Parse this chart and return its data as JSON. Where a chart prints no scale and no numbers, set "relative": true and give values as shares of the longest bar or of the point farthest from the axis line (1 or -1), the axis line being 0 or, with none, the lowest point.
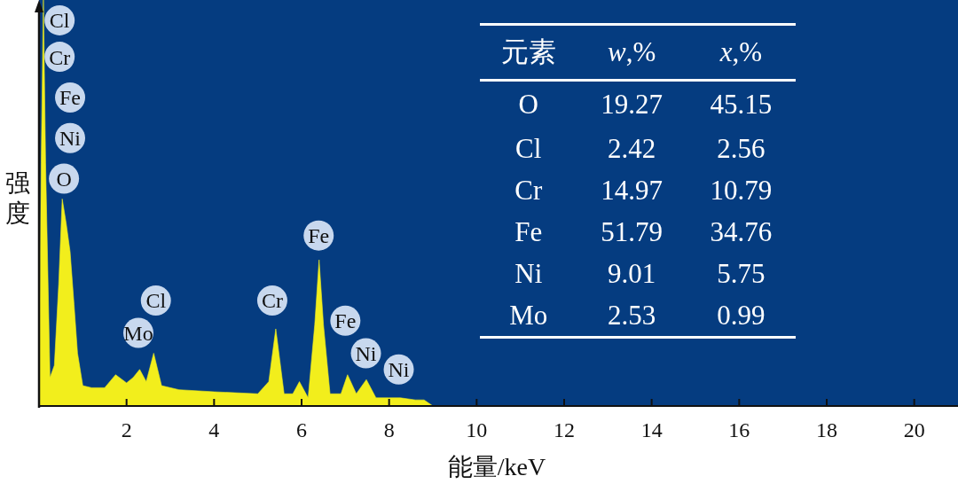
{
  "chart_data": [
    {
      "type": "area",
      "xlabel": "能量/keV",
      "ylabel": "强度",
      "relative": true,
      "x": [
        0,
        0.05,
        0.1,
        0.15,
        0.25,
        0.35,
        0.45,
        0.53,
        0.62,
        0.71,
        0.8,
        0.88,
        1.0,
        1.2,
        1.5,
        1.75,
        2.0,
        2.15,
        2.3,
        2.45,
        2.62,
        2.8,
        3.2,
        4.0,
        5.0,
        5.25,
        5.41,
        5.6,
        5.8,
        5.95,
        6.15,
        6.3,
        6.4,
        6.5,
        6.65,
        6.9,
        7.05,
        7.25,
        7.48,
        7.7,
        8.0,
        8.26,
        8.6,
        8.8,
        9.0
      ],
      "series": [
        {
          "color": "#f2ee1c",
          "values": [
            0.03,
            0.6,
            1,
            0.6,
            0.07,
            0.1,
            0.3,
            0.51,
            0.45,
            0.38,
            0.25,
            0.13,
            0.05,
            0.045,
            0.045,
            0.077,
            0.057,
            0.07,
            0.09,
            0.06,
            0.13,
            0.05,
            0.04,
            0.035,
            0.03,
            0.06,
            0.19,
            0.03,
            0.03,
            0.06,
            0.02,
            0.2,
            0.36,
            0.2,
            0.03,
            0.03,
            0.077,
            0.03,
            0.065,
            0.02,
            0.02,
            0.02,
            0.015,
            0.015,
            0
          ]
        }
      ],
      "xlim": [
        0,
        21
      ],
      "xticks": [
        2,
        4,
        6,
        8,
        10,
        12,
        14,
        16,
        18,
        20
      ],
      "marker": "none",
      "annotations": [
        {
          "text": "Cl",
          "x": 0.47,
          "y": 0.95
        },
        {
          "text": "Cr",
          "x": 0.47,
          "y": 0.86
        },
        {
          "text": "Fe",
          "x": 0.71,
          "y": 0.76
        },
        {
          "text": "Ni",
          "x": 0.71,
          "y": 0.66
        },
        {
          "text": "O",
          "x": 0.57,
          "y": 0.56
        },
        {
          "text": "Mo",
          "x": 2.27,
          "y": 0.18
        },
        {
          "text": "Cl",
          "x": 2.67,
          "y": 0.26
        },
        {
          "text": "Cr",
          "x": 5.33,
          "y": 0.26
        },
        {
          "text": "Fe",
          "x": 6.39,
          "y": 0.42
        },
        {
          "text": "Fe",
          "x": 7.0,
          "y": 0.21
        },
        {
          "text": "Ni",
          "x": 7.47,
          "y": 0.13
        },
        {
          "text": "Ni",
          "x": 8.22,
          "y": 0.09
        }
      ]
    },
    {
      "type": "other",
      "legend_title": "元素",
      "categories": [
        "O",
        "Cl",
        "Cr",
        "Fe",
        "Ni",
        "Mo"
      ],
      "data_labels": true,
      "series": [
        {
          "name": "w,%",
          "values": [
            19.27,
            2.42,
            14.97,
            51.79,
            9.01,
            2.53
          ]
        },
        {
          "name": "x,%",
          "values": [
            45.15,
            2.56,
            10.79,
            34.76,
            5.75,
            0.99
          ]
        }
      ]
    }
  ]
}
